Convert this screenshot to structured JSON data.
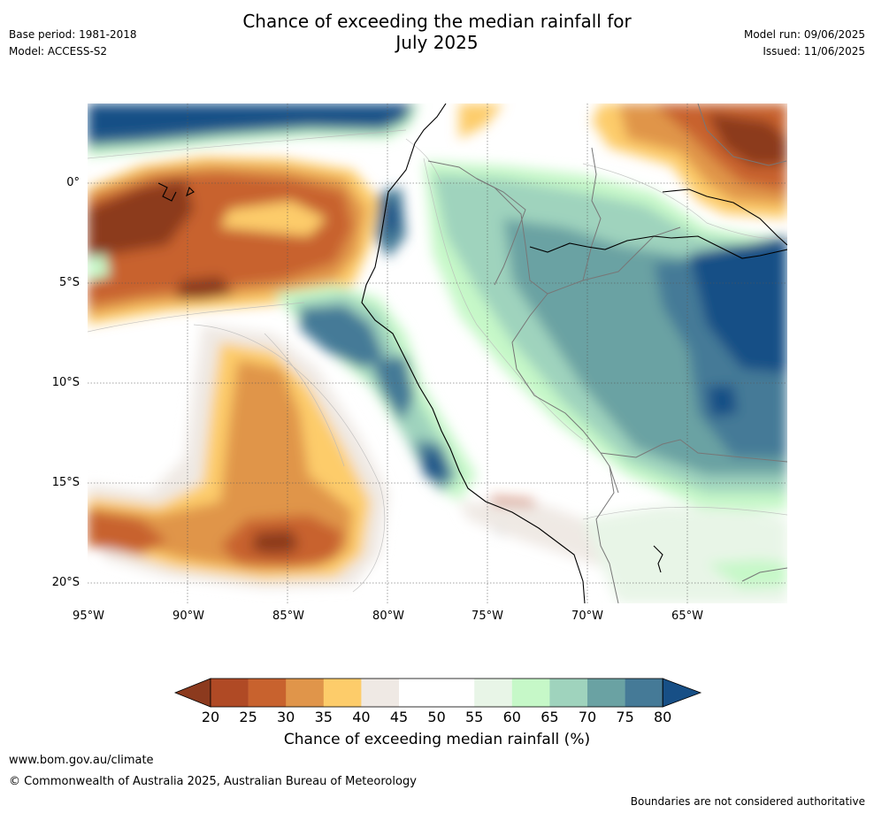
{
  "header": {
    "title_line1": "Chance of exceeding the median rainfall for",
    "title_line2": "July 2025",
    "base_period": "Base period: 1981-2018",
    "model": "Model: ACCESS-S2",
    "model_run": "Model run: 09/06/2025",
    "issued": "Issued: 11/06/2025"
  },
  "map": {
    "lat_labels": [
      "0°",
      "5°S",
      "10°S",
      "15°S",
      "20°S"
    ],
    "lon_labels": [
      "95°W",
      "90°W",
      "85°W",
      "80°W",
      "75°W",
      "70°W",
      "65°W"
    ]
  },
  "legend": {
    "ticks": [
      "20",
      "25",
      "30",
      "35",
      "40",
      "45",
      "50",
      "55",
      "60",
      "65",
      "70",
      "75",
      "80"
    ],
    "title": "Chance of exceeding median rainfall (%)",
    "colors": [
      "#8c3a1e",
      "#b04a25",
      "#c8622e",
      "#e0954a",
      "#fdcc6a",
      "#efe9e4",
      "#ffffff",
      "#ffffff",
      "#e8f5e7",
      "#c6f8c8",
      "#9fd3bd",
      "#6aa2a3",
      "#457a97",
      "#174f86"
    ]
  },
  "footer": {
    "url": "www.bom.gov.au/climate",
    "copyright": "© Commonwealth of Australia 2025, Australian Bureau of Meteorology",
    "disclaimer": "Boundaries are not considered authoritative"
  }
}
